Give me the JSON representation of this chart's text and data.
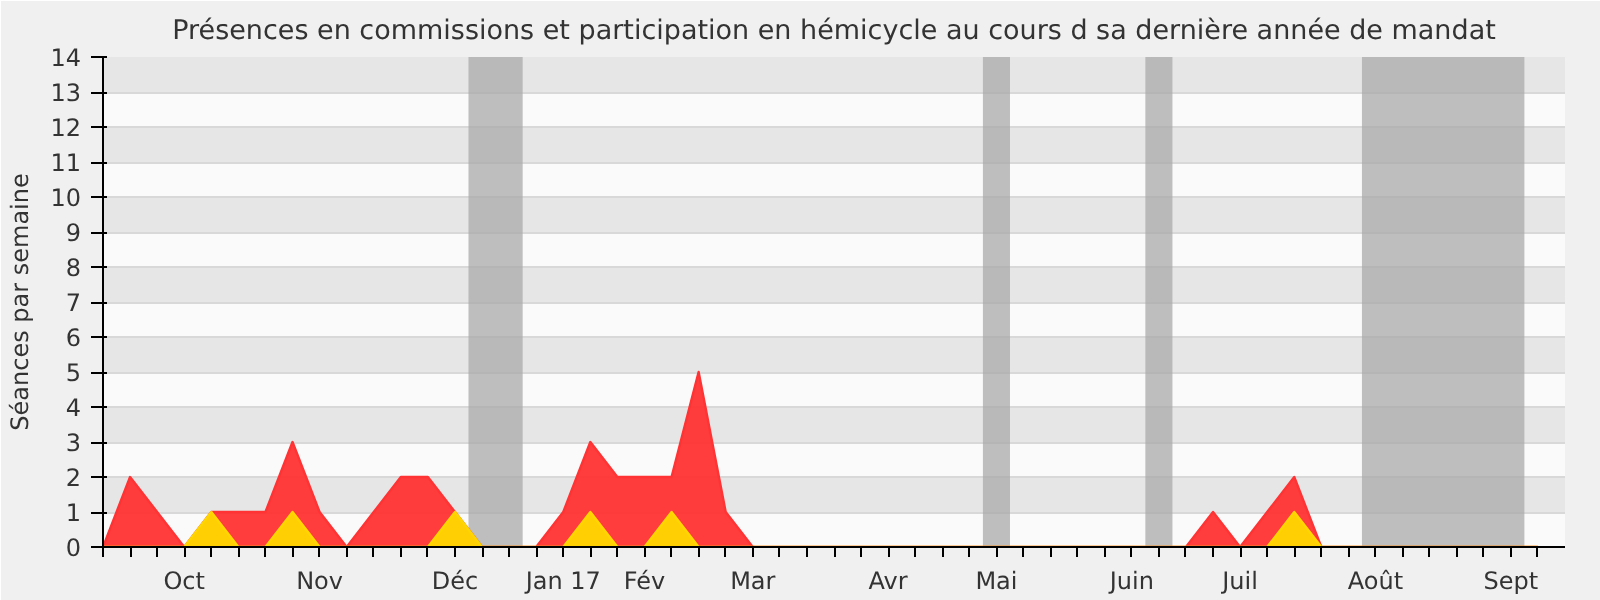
{
  "chart_data": {
    "type": "area",
    "title": "Présences en commissions et participation en hémicycle au cours d sa dernière année de mandat",
    "ylabel": "Séances par semaine",
    "categories": [
      null,
      null,
      null,
      "Oct",
      null,
      null,
      null,
      null,
      "Nov",
      null,
      null,
      null,
      null,
      "Déc",
      null,
      null,
      null,
      "Jan 17",
      null,
      null,
      "Fév",
      null,
      null,
      null,
      "Mar",
      null,
      null,
      null,
      null,
      "Avr",
      null,
      null,
      null,
      "Mai",
      null,
      null,
      null,
      null,
      "Juin",
      null,
      null,
      null,
      "Juil",
      null,
      null,
      null,
      null,
      "Août",
      null,
      null,
      null,
      null,
      "Sept",
      null
    ],
    "series": [
      {
        "color": "#ff3333",
        "values": [
          0,
          2,
          1,
          0,
          1,
          1,
          1,
          3,
          1,
          0,
          1,
          2,
          2,
          1,
          0,
          0,
          0,
          1,
          3,
          2,
          2,
          2,
          5,
          1,
          0,
          0,
          0,
          0,
          0,
          0,
          0,
          0,
          0,
          0,
          0,
          0,
          0,
          0,
          0,
          0,
          0,
          1,
          0,
          1,
          2,
          0,
          0,
          0,
          0,
          0,
          0,
          0,
          0,
          0
        ]
      },
      {
        "color": "#ffd700",
        "values": [
          0,
          0,
          0,
          0,
          1,
          0,
          0,
          1,
          0,
          0,
          0,
          0,
          0,
          1,
          0,
          0,
          0,
          0,
          1,
          0,
          0,
          1,
          0,
          0,
          0,
          0,
          0,
          0,
          0,
          0,
          0,
          0,
          0,
          0,
          0,
          0,
          0,
          0,
          0,
          0,
          0,
          0,
          0,
          0,
          1,
          0,
          0,
          0,
          0,
          0,
          0,
          0,
          0,
          0
        ]
      }
    ],
    "ylim": [
      0,
      14
    ],
    "yticks": [
      0,
      1,
      2,
      3,
      4,
      5,
      6,
      7,
      8,
      9,
      10,
      11,
      12,
      13,
      14
    ],
    "grid": "y"
  }
}
